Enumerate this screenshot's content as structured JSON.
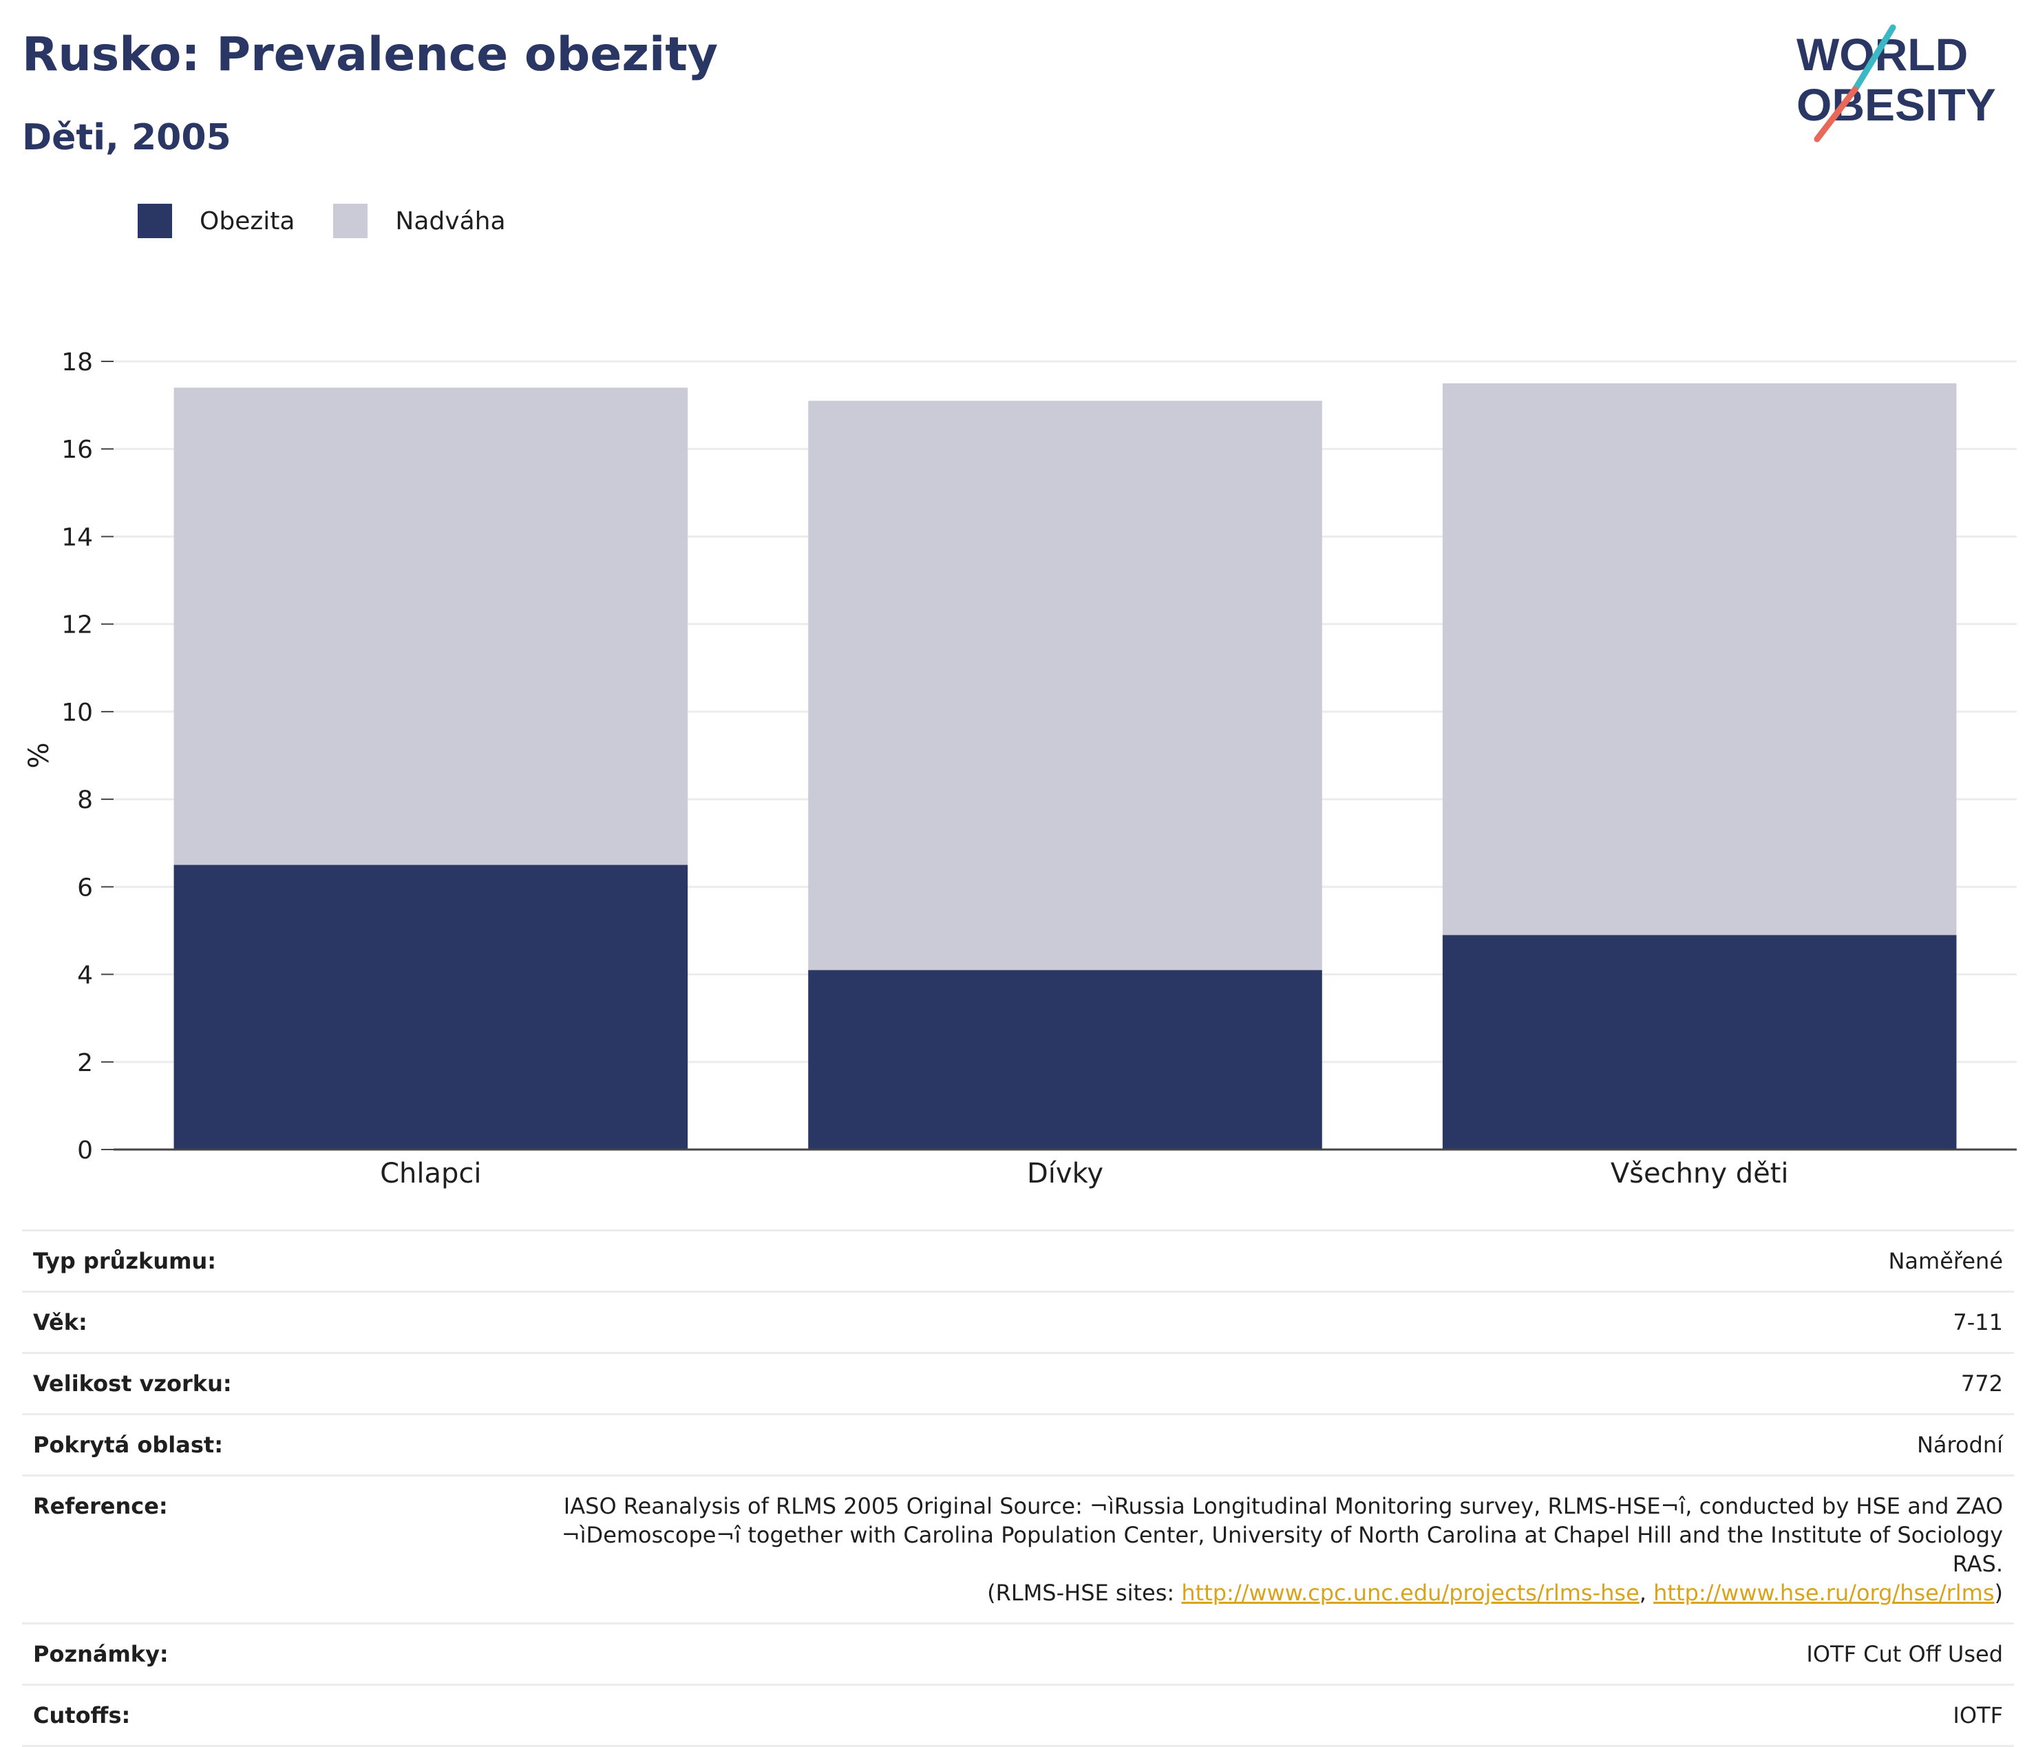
{
  "header": {
    "title": "Rusko: Prevalence obezity",
    "subtitle": "Děti, 2005"
  },
  "logo": {
    "line1": "WORLD",
    "line2": "OBESITY"
  },
  "legend": [
    {
      "label": "Obezita",
      "color": "#2a3663"
    },
    {
      "label": "Nadváha",
      "color": "#cacbd7"
    }
  ],
  "chart_data": {
    "type": "bar",
    "stacked": true,
    "categories": [
      "Chlapci",
      "Dívky",
      "Všechny děti"
    ],
    "series": [
      {
        "name": "Obezita",
        "values": [
          6.5,
          4.1,
          4.9
        ],
        "color": "#2a3663"
      },
      {
        "name": "Nadváha",
        "values": [
          10.9,
          13.0,
          12.6
        ],
        "color": "#cacbd7"
      }
    ],
    "ylabel": "%",
    "ylim": [
      0,
      18
    ],
    "yticks": [
      0,
      2,
      4,
      6,
      8,
      10,
      12,
      14,
      16,
      18
    ],
    "grid": true,
    "legend_position": "top-left"
  },
  "info": {
    "survey_type": {
      "label": "Typ průzkumu:",
      "value": "Naměřené"
    },
    "age": {
      "label": "Věk:",
      "value": "7-11"
    },
    "sample_size": {
      "label": "Velikost vzorku:",
      "value": "772"
    },
    "area": {
      "label": "Pokrytá oblast:",
      "value": "Národní"
    },
    "reference": {
      "label": "Reference:",
      "line1": "IASO Reanalysis of RLMS 2005 Original Source: ¬ìRussia Longitudinal Monitoring survey, RLMS-HSE¬î, conducted by HSE and ZAO",
      "line2": "¬ìDemoscope¬î together with Carolina Population Center, University of North Carolina at Chapel Hill and the Institute of Sociology RAS.",
      "line3_prefix": "(RLMS-HSE sites: ",
      "link1": "http://www.cpc.unc.edu/projects/rlms-hse",
      "separator": ", ",
      "link2": "http://www.hse.ru/org/hse/rlms",
      "line3_suffix": ")"
    },
    "notes": {
      "label": "Poznámky:",
      "value": "IOTF Cut Off Used"
    },
    "cutoffs": {
      "label": "Cutoffs:",
      "value": "IOTF"
    }
  }
}
